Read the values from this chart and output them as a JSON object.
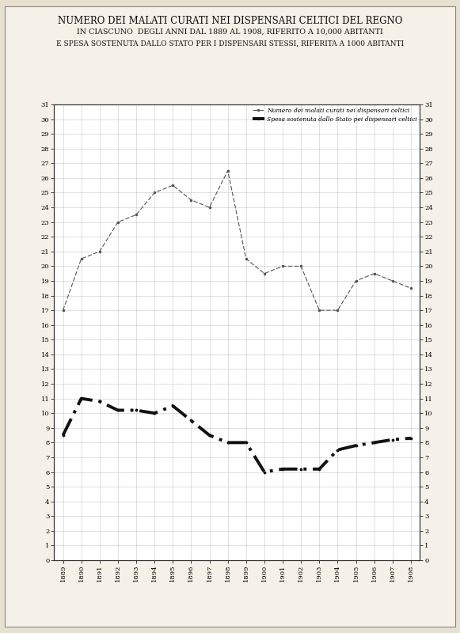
{
  "title_line1": "NUMERO DEI MALATI CURATI NEI DISPENSARI CELTICI DEL REGNO",
  "title_line2": "IN CIASCUNO  DEGLI ANNI DAL 1889 AL 1908, RIFERITO A 10,000 ABITANTI",
  "title_line3": "E SPESA SOSTENUTA DALLO STATO PER I DISPENSARI STESSI, RIFERITA A 1000 ABITANTI",
  "years": [
    1889,
    1890,
    1891,
    1892,
    1893,
    1894,
    1895,
    1896,
    1897,
    1898,
    1899,
    1900,
    1901,
    1902,
    1903,
    1904,
    1905,
    1906,
    1907,
    1908
  ],
  "line1_values": [
    17.0,
    20.5,
    21.0,
    23.0,
    23.5,
    25.0,
    25.5,
    24.5,
    24.0,
    26.5,
    20.5,
    19.5,
    20.0,
    20.0,
    17.0,
    17.0,
    19.0,
    19.5,
    19.0,
    18.5
  ],
  "line2_values": [
    8.5,
    11.0,
    10.8,
    10.2,
    10.2,
    10.0,
    10.5,
    9.5,
    8.5,
    8.0,
    8.0,
    6.0,
    6.2,
    6.2,
    6.2,
    7.5,
    7.8,
    8.0,
    8.2,
    8.3
  ],
  "legend1": "Numero dei malati curati nei dispensari celtici",
  "legend2": "Spesa sostenuta dallo Stato pei dispensari celtici",
  "ymin": 0,
  "ymax": 31,
  "outer_bg_color": "#e8e0d0",
  "inner_bg_color": "#f5f0e8",
  "plot_bg_color": "#ffffff",
  "line1_color": "#555555",
  "line2_color": "#111111",
  "grid_color": "#bbbbbb",
  "title1_fontsize": 8.5,
  "title2_fontsize": 6.8,
  "title3_fontsize": 6.5,
  "tick_fontsize": 6.0,
  "legend_fontsize": 5.5
}
